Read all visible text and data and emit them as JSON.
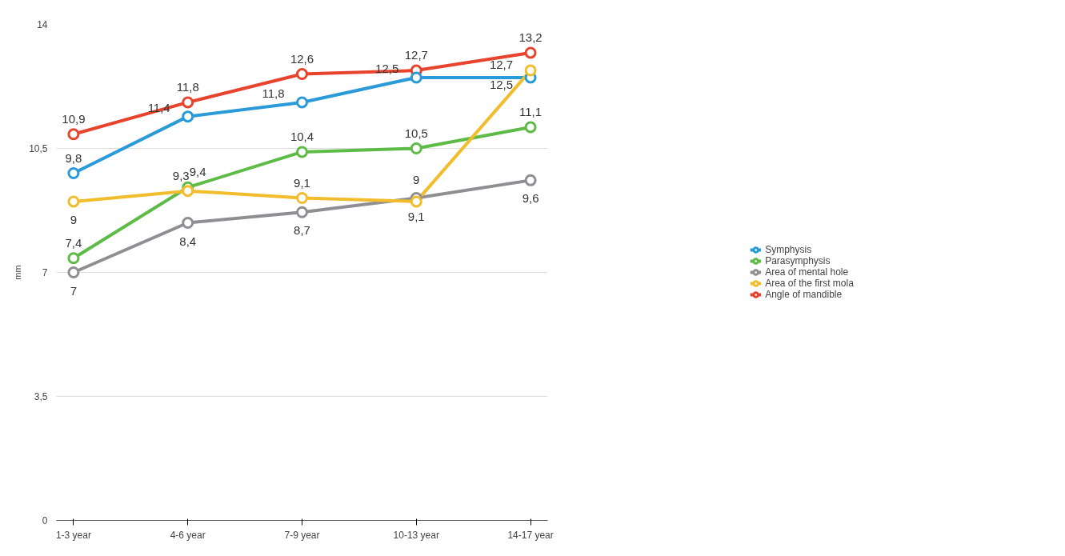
{
  "chart_data": {
    "type": "line",
    "ylabel": "mm",
    "categories": [
      "1-3 year",
      "4-6 year",
      "7-9 year",
      "10-13 year",
      "14-17 year"
    ],
    "series": [
      {
        "name": "Symphysis",
        "color": "#2a9ad8",
        "values": [
          9.8,
          11.4,
          11.8,
          12.5,
          12.5
        ],
        "value_labels": [
          "9,8",
          "11,4",
          "11,8",
          "12,5",
          "12,5"
        ]
      },
      {
        "name": "Parasymphysis",
        "color": "#5dbb46",
        "values": [
          7.4,
          9.4,
          10.4,
          10.5,
          11.1
        ],
        "value_labels": [
          "7,4",
          "9,4",
          "10,4",
          "10,5",
          "11,1"
        ]
      },
      {
        "name": "Area of mental hole",
        "color": "#8e8e93",
        "values": [
          7,
          8.4,
          8.7,
          9.1,
          9.6
        ],
        "value_labels": [
          "7",
          "8,4",
          "8,7",
          "9,1",
          "9,6"
        ]
      },
      {
        "name": "Area of the first mola",
        "color": "#f1bd2c",
        "values": [
          9,
          9.3,
          9.1,
          9,
          12.7
        ],
        "value_labels": [
          "9",
          "9,3",
          "9,1",
          "9",
          "12,7"
        ]
      },
      {
        "name": "Angle of mandible",
        "color": "#e8432c",
        "values": [
          10.9,
          11.8,
          12.6,
          12.7,
          13.2
        ],
        "value_labels": [
          "10,9",
          "11,8",
          "12,6",
          "12,7",
          "13,2"
        ]
      }
    ],
    "ylim": [
      0,
      14
    ],
    "yticks": [
      0,
      {
        "value": 3.5,
        "label": "3,5"
      },
      7,
      {
        "value": 10.5,
        "label": "10,5"
      },
      14
    ],
    "grid": "y",
    "legend": "right",
    "marker": "circle",
    "line_style": "solid"
  }
}
